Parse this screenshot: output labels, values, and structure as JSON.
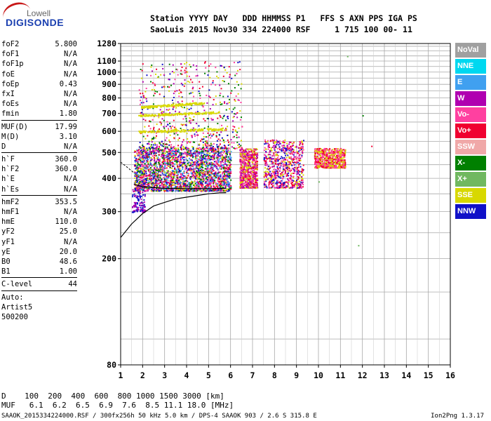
{
  "logo": {
    "line1": "Lowell",
    "line2": "DIGISONDE"
  },
  "header": {
    "row1": "Station YYYY DAY   DDD HHMMSS P1   FFS S AXN PPS IGA PS",
    "row2": "SaoLuis 2015 Nov30 334 224000 RSF     1 715 100 00- 11"
  },
  "params": [
    {
      "k": "foF2",
      "v": "5.800",
      "sep": false
    },
    {
      "k": "foF1",
      "v": "N/A",
      "sep": false
    },
    {
      "k": "foF1p",
      "v": "N/A",
      "sep": false
    },
    {
      "k": "foE",
      "v": "N/A",
      "sep": false
    },
    {
      "k": "foEp",
      "v": "0.43",
      "sep": false
    },
    {
      "k": "fxI",
      "v": "N/A",
      "sep": false
    },
    {
      "k": "foEs",
      "v": "N/A",
      "sep": false
    },
    {
      "k": "fmin",
      "v": "1.80",
      "sep": true
    },
    {
      "k": "MUF(D)",
      "v": "17.99",
      "sep": false
    },
    {
      "k": "M(D)",
      "v": "3.10",
      "sep": false
    },
    {
      "k": "D",
      "v": "N/A",
      "sep": true
    },
    {
      "k": "h`F",
      "v": "360.0",
      "sep": false
    },
    {
      "k": "h`F2",
      "v": "360.0",
      "sep": false
    },
    {
      "k": "h`E",
      "v": "N/A",
      "sep": false
    },
    {
      "k": "h`Es",
      "v": "N/A",
      "sep": true
    },
    {
      "k": "hmF2",
      "v": "353.5",
      "sep": false
    },
    {
      "k": "hmF1",
      "v": "N/A",
      "sep": false
    },
    {
      "k": "hmE",
      "v": "110.0",
      "sep": false
    },
    {
      "k": "yF2",
      "v": "25.0",
      "sep": false
    },
    {
      "k": "yF1",
      "v": "N/A",
      "sep": false
    },
    {
      "k": "yE",
      "v": "20.0",
      "sep": false
    },
    {
      "k": "B0",
      "v": "48.6",
      "sep": false
    },
    {
      "k": "B1",
      "v": "1.00",
      "sep": true
    },
    {
      "k": "C-level",
      "v": "44",
      "sep": true
    },
    {
      "k": "Auto:",
      "v": "",
      "sep": false
    },
    {
      "k": "Artist5",
      "v": "",
      "sep": false
    },
    {
      "k": "500200",
      "v": "",
      "sep": false
    }
  ],
  "legend": [
    {
      "label": "NoVal",
      "color": "#a0a0a0"
    },
    {
      "label": "NNE",
      "color": "#00d8f0"
    },
    {
      "label": "E",
      "color": "#40a0f0"
    },
    {
      "label": "W",
      "color": "#b000b0"
    },
    {
      "label": "Vo-",
      "color": "#ff40a0"
    },
    {
      "label": "Vo+",
      "color": "#f00030"
    },
    {
      "label": "SSW",
      "color": "#f0a8a8"
    },
    {
      "label": "X-",
      "color": "#008000"
    },
    {
      "label": "X+",
      "color": "#70b860"
    },
    {
      "label": "SSE",
      "color": "#d8d800"
    },
    {
      "label": "NNW",
      "color": "#1010c8"
    }
  ],
  "chart_data": {
    "type": "scatter",
    "title": "",
    "xlabel": "",
    "ylabel": "",
    "xlim": [
      1,
      16
    ],
    "ylim": [
      80,
      1280
    ],
    "yscale": "log",
    "grid": true,
    "x_ticks": [
      "1",
      "2",
      "3",
      "4",
      "5",
      "6",
      "7",
      "8",
      "9",
      "10",
      "11",
      "12",
      "13",
      "14",
      "15",
      "16"
    ],
    "y_ticks": [
      {
        "value": 80,
        "label": "80"
      },
      {
        "value": 200,
        "label": "200"
      },
      {
        "value": 300,
        "label": "300"
      },
      {
        "value": 400,
        "label": "400"
      },
      {
        "value": 500,
        "label": "500"
      },
      {
        "value": 600,
        "label": "600"
      },
      {
        "value": 700,
        "label": "700"
      },
      {
        "value": 800,
        "label": "800"
      },
      {
        "value": 900,
        "label": "900"
      },
      {
        "value": 1000,
        "label": "1000"
      },
      {
        "value": 1100,
        "label": "1100"
      },
      {
        "value": 1280,
        "label": "1280"
      }
    ],
    "y_gridlines": [
      100,
      150,
      200,
      250,
      300,
      350,
      400,
      450,
      500,
      550,
      600,
      650,
      700,
      750,
      800,
      850,
      900,
      950,
      1000,
      1050,
      1100,
      1150,
      1200,
      1250,
      1280
    ],
    "x_minor_gridlines": [
      1.5,
      2.5,
      3.5,
      4.5,
      5.5,
      6.5,
      7.5,
      8.5,
      9.5,
      10.5,
      11.5,
      12.5,
      13.5,
      14.5,
      15.5
    ],
    "echo_regions": [
      {
        "name": "F-trace",
        "x": [
          1.6,
          6.0
        ],
        "y": [
          360,
          520
        ],
        "colors": [
          "#ff40a0",
          "#f00030",
          "#1010c8",
          "#d8d800",
          "#b000b0",
          "#40a0f0",
          "#008000"
        ]
      },
      {
        "name": "block-2",
        "x": [
          6.4,
          7.2
        ],
        "y": [
          370,
          520
        ],
        "colors": [
          "#ff40a0",
          "#f00030",
          "#d8d800",
          "#b000b0"
        ]
      },
      {
        "name": "block-3",
        "x": [
          7.5,
          9.3
        ],
        "y": [
          370,
          560
        ],
        "colors": [
          "#ff40a0",
          "#f00030",
          "#d8d800",
          "#b000b0",
          "#1010c8"
        ]
      },
      {
        "name": "block-4",
        "x": [
          9.8,
          11.2
        ],
        "y": [
          440,
          520
        ],
        "colors": [
          "#ff40a0",
          "#f00030",
          "#d8d800"
        ]
      },
      {
        "name": "scatter-high",
        "x": [
          1.8,
          6.5
        ],
        "y": [
          520,
          1100
        ],
        "colors": [
          "#d8d800",
          "#ff40a0",
          "#f00030",
          "#008000",
          "#b000b0",
          "#1010c8"
        ]
      },
      {
        "name": "low-tail",
        "x": [
          1.5,
          2.1
        ],
        "y": [
          300,
          380
        ],
        "colors": [
          "#1010c8",
          "#b000b0"
        ]
      }
    ],
    "fitted_trace": {
      "x": [
        1.0,
        1.5,
        2.0,
        2.5,
        3.0,
        3.5,
        4.0,
        4.5,
        5.0,
        5.5,
        5.8
      ],
      "y": [
        240,
        270,
        295,
        315,
        325,
        335,
        340,
        345,
        350,
        353,
        353.5
      ]
    },
    "fitted_virtual": {
      "x": [
        1.6,
        2.0,
        3.0,
        4.0,
        5.0,
        5.8
      ],
      "y": [
        380,
        372,
        367,
        366,
        366,
        367
      ]
    },
    "fitted_tail": {
      "x": [
        1.0,
        1.3,
        1.6
      ],
      "y": [
        460,
        440,
        420
      ]
    },
    "isolated_points": [
      {
        "x": 11.8,
        "y": 225,
        "color": "#70b860"
      },
      {
        "x": 12.4,
        "y": 530,
        "color": "#f00030"
      },
      {
        "x": 11.3,
        "y": 1150,
        "color": "#70b860"
      },
      {
        "x": 12.0,
        "y": 690,
        "color": "#008000"
      },
      {
        "x": 10.0,
        "y": 390,
        "color": "#70b860"
      }
    ]
  },
  "bottom": {
    "d_row": "D    100  200  400  600  800 1000 1500 3000 [km]",
    "muf_row": "MUF   6.1  6.2  6.5  6.9  7.6  8.5 11.1 18.0 [MHz]"
  },
  "footer": {
    "left": "SAAOK_2015334224000.RSF / 300fx256h 50 kHz 5.0 km / DPS-4 SAAOK 903 / 2.6 S 315.8 E",
    "right": "Ion2Png 1.3.17"
  }
}
